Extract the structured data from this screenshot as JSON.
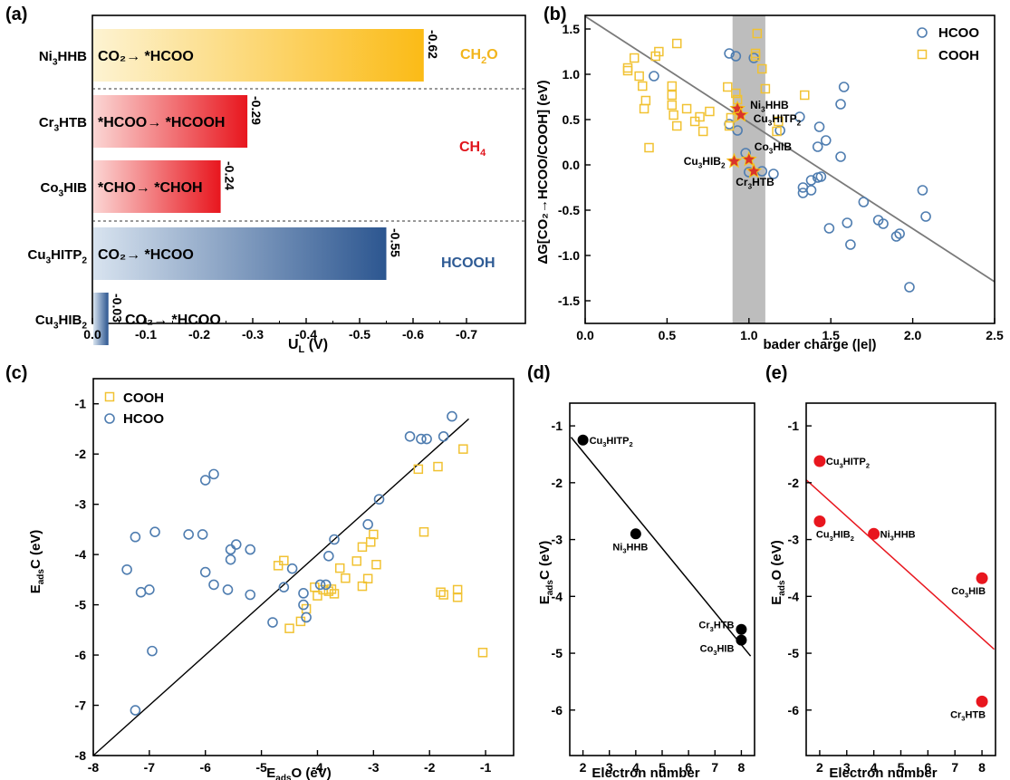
{
  "figure": {
    "panel_labels": [
      "(a)",
      "(b)",
      "(c)",
      "(d)",
      "(e)"
    ]
  },
  "chart_data": [
    {
      "panel": "(a)",
      "type": "bar",
      "orientation": "horizontal",
      "xlabel": "U",
      "xlabel_sub": "L",
      "xlabel_unit": " (V)",
      "xlim": [
        0.0,
        -0.8
      ],
      "xticks": [
        "0.0",
        "-0.1",
        "-0.2",
        "-0.3",
        "-0.4",
        "-0.5",
        "-0.6",
        "-0.7"
      ],
      "bars": [
        {
          "category_base": "Ni",
          "category_sub": "3",
          "category_rest": "HHB",
          "value": -0.62,
          "value_label": "-0.62",
          "step": "CO₂→ *HCOO",
          "color": "#fbbb16"
        },
        {
          "category_base": "Cr",
          "category_sub": "3",
          "category_rest": "HTB",
          "value": -0.29,
          "value_label": "-0.29",
          "step": "*HCOO→ *HCOOH",
          "color": "#e8161e"
        },
        {
          "category_base": "Co",
          "category_sub": "3",
          "category_rest": "HIB",
          "value": -0.24,
          "value_label": "-0.24",
          "step": "*CHO→ *CHOH",
          "color": "#e8161e"
        },
        {
          "category_base": "Cu",
          "category_sub": "3",
          "category_rest": "HITP",
          "category_sub2": "2",
          "value": -0.55,
          "value_label": "-0.55",
          "step": "CO₂→ *HCOO",
          "color": "#2c5690"
        },
        {
          "category_base": "Cu",
          "category_sub": "3",
          "category_rest": "HIB",
          "category_sub2": "2",
          "value": -0.03,
          "value_label": "-0.03",
          "step": "CO₂→ *HCOO",
          "color": "#2c5690"
        }
      ],
      "group_labels": [
        {
          "text": "CH",
          "sub": "2",
          "rest": "O",
          "color": "#f2b51d"
        },
        {
          "text": "CH",
          "sub": "4",
          "rest": "",
          "color": "#e0141c"
        },
        {
          "text": "HCOOH",
          "sub": "",
          "rest": "",
          "color": "#2d5a94"
        }
      ]
    },
    {
      "panel": "(b)",
      "type": "scatter",
      "xlabel": "bader charge (|e|)",
      "ylabel": "ΔG[CO₂→HCOO/COOH] (eV)",
      "xlim": [
        0.0,
        2.5
      ],
      "ylim": [
        -1.75,
        1.65
      ],
      "xticks": [
        "0.0",
        "0.5",
        "1.0",
        "1.5",
        "2.0",
        "2.5"
      ],
      "yticks": [
        "-1.5",
        "-1.0",
        "-0.5",
        "0.0",
        "0.5",
        "1.0",
        "1.5"
      ],
      "shaded_band": [
        0.9,
        1.1
      ],
      "fit_line": [
        [
          0.0,
          1.64
        ],
        [
          2.5,
          -1.29
        ]
      ],
      "legend": [
        "HCOO",
        "COOH"
      ],
      "series": [
        {
          "name": "HCOO",
          "marker": "circle",
          "color": "#4f7db0",
          "points": [
            [
              0.42,
              0.98
            ],
            [
              0.88,
              1.23
            ],
            [
              0.92,
              1.2
            ],
            [
              1.03,
              1.18
            ],
            [
              0.88,
              0.45
            ],
            [
              0.93,
              0.38
            ],
            [
              0.98,
              0.13
            ],
            [
              1.0,
              -0.08
            ],
            [
              1.08,
              -0.07
            ],
            [
              1.15,
              -0.1
            ],
            [
              1.19,
              0.38
            ],
            [
              1.31,
              0.53
            ],
            [
              1.33,
              -0.25
            ],
            [
              1.33,
              -0.31
            ],
            [
              1.38,
              -0.17
            ],
            [
              1.38,
              -0.28
            ],
            [
              1.42,
              -0.14
            ],
            [
              1.44,
              -0.13
            ],
            [
              1.42,
              0.2
            ],
            [
              1.43,
              0.42
            ],
            [
              1.47,
              0.27
            ],
            [
              1.49,
              -0.7
            ],
            [
              1.56,
              0.67
            ],
            [
              1.56,
              0.09
            ],
            [
              1.58,
              0.86
            ],
            [
              1.6,
              -0.64
            ],
            [
              1.62,
              -0.88
            ],
            [
              1.7,
              -0.41
            ],
            [
              1.79,
              -0.61
            ],
            [
              1.82,
              -0.65
            ],
            [
              1.9,
              -0.79
            ],
            [
              1.92,
              -0.76
            ],
            [
              1.98,
              -1.35
            ],
            [
              2.06,
              -0.28
            ],
            [
              2.08,
              -0.57
            ]
          ]
        },
        {
          "name": "COOH",
          "marker": "square",
          "color": "#f1c232",
          "points": [
            [
              0.26,
              1.04
            ],
            [
              0.26,
              1.07
            ],
            [
              0.3,
              1.18
            ],
            [
              0.33,
              0.98
            ],
            [
              0.35,
              0.87
            ],
            [
              0.36,
              0.62
            ],
            [
              0.37,
              0.71
            ],
            [
              0.39,
              0.19
            ],
            [
              0.43,
              1.2
            ],
            [
              0.45,
              1.25
            ],
            [
              0.53,
              0.87
            ],
            [
              0.53,
              0.77
            ],
            [
              0.53,
              0.66
            ],
            [
              0.54,
              0.55
            ],
            [
              0.56,
              1.34
            ],
            [
              0.56,
              0.43
            ],
            [
              0.62,
              0.62
            ],
            [
              0.67,
              0.48
            ],
            [
              0.7,
              0.53
            ],
            [
              0.72,
              0.37
            ],
            [
              0.76,
              0.59
            ],
            [
              0.87,
              0.86
            ],
            [
              0.88,
              0.43
            ],
            [
              0.89,
              0.52
            ],
            [
              0.92,
              0.79
            ],
            [
              0.93,
              0.72
            ],
            [
              1.04,
              1.23
            ],
            [
              1.04,
              1.2
            ],
            [
              1.05,
              1.45
            ],
            [
              1.08,
              1.06
            ],
            [
              1.1,
              0.84
            ],
            [
              1.17,
              0.37
            ],
            [
              1.18,
              0.48
            ],
            [
              1.34,
              0.77
            ]
          ]
        }
      ],
      "highlights": [
        {
          "base": "Ni",
          "sub": "3",
          "rest": "HHB",
          "sub2": "",
          "x": 0.93,
          "y": 0.62
        },
        {
          "base": "Cu",
          "sub": "3",
          "rest": "HITP",
          "sub2": "2",
          "x": 0.95,
          "y": 0.55
        },
        {
          "base": "Co",
          "sub": "3",
          "rest": "HIB",
          "sub2": "",
          "x": 1.0,
          "y": 0.06
        },
        {
          "base": "Cu",
          "sub": "3",
          "rest": "HIB",
          "sub2": "2",
          "x": 0.91,
          "y": 0.04
        },
        {
          "base": "Cr",
          "sub": "3",
          "rest": "HTB",
          "sub2": "",
          "x": 1.03,
          "y": -0.07
        }
      ]
    },
    {
      "panel": "(c)",
      "type": "scatter",
      "xlabel": "E",
      "xlabel_sub": "ads",
      "xlabel_rest": "O (eV)",
      "ylabel": "E",
      "ylabel_sub": "ads",
      "ylabel_rest": "C (eV)",
      "xlim": [
        -8,
        -0.5
      ],
      "ylim": [
        -8,
        -0.5
      ],
      "xticks": [
        "-8",
        "-7",
        "-6",
        "-5",
        "-4",
        "-3",
        "-2",
        "-1"
      ],
      "yticks": [
        "-1",
        "-2",
        "-3",
        "-4",
        "-5",
        "-6",
        "-7",
        "-8"
      ],
      "fit_line": [
        [
          -8,
          -8
        ],
        [
          -1.3,
          -1.3
        ]
      ],
      "legend": [
        "COOH",
        "HCOO"
      ],
      "series": [
        {
          "name": "COOH",
          "marker": "square",
          "color": "#f1c232",
          "points": [
            [
              -4.7,
              -4.22
            ],
            [
              -4.6,
              -4.12
            ],
            [
              -4.5,
              -5.47
            ],
            [
              -4.3,
              -5.33
            ],
            [
              -4.2,
              -5.08
            ],
            [
              -4.05,
              -4.65
            ],
            [
              -4.0,
              -4.82
            ],
            [
              -3.9,
              -4.7
            ],
            [
              -3.8,
              -4.73
            ],
            [
              -3.75,
              -4.69
            ],
            [
              -3.7,
              -4.78
            ],
            [
              -3.6,
              -4.27
            ],
            [
              -3.5,
              -4.47
            ],
            [
              -3.3,
              -4.13
            ],
            [
              -3.2,
              -4.63
            ],
            [
              -3.2,
              -3.85
            ],
            [
              -3.1,
              -4.48
            ],
            [
              -3.05,
              -3.75
            ],
            [
              -3.0,
              -3.6
            ],
            [
              -2.95,
              -4.2
            ],
            [
              -2.2,
              -2.3
            ],
            [
              -2.1,
              -3.55
            ],
            [
              -1.85,
              -2.25
            ],
            [
              -1.8,
              -4.75
            ],
            [
              -1.75,
              -4.8
            ],
            [
              -1.5,
              -4.7
            ],
            [
              -1.5,
              -4.85
            ],
            [
              -1.4,
              -1.9
            ],
            [
              -1.05,
              -5.95
            ]
          ]
        },
        {
          "name": "HCOO",
          "marker": "circle",
          "color": "#4f7db0",
          "points": [
            [
              -7.4,
              -4.3
            ],
            [
              -7.25,
              -3.65
            ],
            [
              -7.25,
              -7.1
            ],
            [
              -7.15,
              -4.75
            ],
            [
              -7.0,
              -4.7
            ],
            [
              -6.95,
              -5.92
            ],
            [
              -6.9,
              -3.55
            ],
            [
              -6.3,
              -3.6
            ],
            [
              -6.05,
              -3.6
            ],
            [
              -6.0,
              -2.52
            ],
            [
              -6.0,
              -4.35
            ],
            [
              -5.85,
              -2.4
            ],
            [
              -5.85,
              -4.6
            ],
            [
              -5.6,
              -4.7
            ],
            [
              -5.55,
              -3.9
            ],
            [
              -5.55,
              -4.1
            ],
            [
              -5.45,
              -3.8
            ],
            [
              -5.2,
              -3.9
            ],
            [
              -5.2,
              -4.8
            ],
            [
              -4.8,
              -5.35
            ],
            [
              -4.6,
              -4.65
            ],
            [
              -4.45,
              -4.28
            ],
            [
              -4.25,
              -4.77
            ],
            [
              -4.25,
              -5.0
            ],
            [
              -4.2,
              -5.25
            ],
            [
              -3.95,
              -4.6
            ],
            [
              -3.85,
              -4.6
            ],
            [
              -3.8,
              -4.03
            ],
            [
              -3.7,
              -3.7
            ],
            [
              -3.1,
              -3.4
            ],
            [
              -2.9,
              -2.9
            ],
            [
              -2.35,
              -1.65
            ],
            [
              -2.15,
              -1.7
            ],
            [
              -2.05,
              -1.7
            ],
            [
              -1.75,
              -1.65
            ],
            [
              -1.6,
              -1.25
            ]
          ]
        }
      ]
    },
    {
      "panel": "(d)",
      "type": "scatter",
      "xlabel": "Electron number",
      "ylabel": "E",
      "ylabel_sub": "ads",
      "ylabel_rest": "C (eV)",
      "xlim": [
        1.5,
        8.5
      ],
      "ylim": [
        -6.8,
        -0.6
      ],
      "xticks": [
        "2",
        "3",
        "4",
        "5",
        "6",
        "7",
        "8"
      ],
      "yticks": [
        "-1",
        "-2",
        "-3",
        "-4",
        "-5",
        "-6"
      ],
      "fit_line": [
        [
          1.55,
          -1.2
        ],
        [
          8.35,
          -5.05
        ]
      ],
      "series": [
        {
          "name": "",
          "marker": "dot",
          "color": "#000000",
          "points": [
            [
              2,
              -1.25
            ],
            [
              4,
              -2.9
            ],
            [
              8,
              -4.58
            ],
            [
              8,
              -4.77
            ]
          ],
          "labels": [
            {
              "base": "Cu",
              "sub": "3",
              "rest": "HITP",
              "sub2": "2"
            },
            {
              "base": "Ni",
              "sub": "3",
              "rest": "HHB",
              "sub2": ""
            },
            {
              "base": "Cr",
              "sub": "3",
              "rest": "HTB",
              "sub2": ""
            },
            {
              "base": "Co",
              "sub": "3",
              "rest": "HIB",
              "sub2": ""
            }
          ]
        }
      ]
    },
    {
      "panel": "(e)",
      "type": "scatter",
      "xlabel": "Electron number",
      "ylabel": "E",
      "ylabel_sub": "ads",
      "ylabel_rest": "O (eV)",
      "xlim": [
        1.5,
        8.5
      ],
      "ylim": [
        -6.8,
        -0.6
      ],
      "xticks": [
        "2",
        "3",
        "4",
        "5",
        "6",
        "7",
        "8"
      ],
      "yticks": [
        "-1",
        "-2",
        "-3",
        "-4",
        "-5",
        "-6"
      ],
      "fit_line": [
        [
          1.5,
          -1.95
        ],
        [
          8.45,
          -4.93
        ]
      ],
      "series": [
        {
          "name": "",
          "marker": "dot",
          "color": "#e8161e",
          "points": [
            [
              2,
              -1.62
            ],
            [
              2,
              -2.68
            ],
            [
              4,
              -2.9
            ],
            [
              8,
              -3.68
            ],
            [
              8,
              -5.85
            ]
          ],
          "labels": [
            {
              "base": "Cu",
              "sub": "3",
              "rest": "HITP",
              "sub2": "2"
            },
            {
              "base": "Cu",
              "sub": "3",
              "rest": "HIB",
              "sub2": "2"
            },
            {
              "base": "Ni",
              "sub": "3",
              "rest": "HHB",
              "sub2": ""
            },
            {
              "base": "Co",
              "sub": "3",
              "rest": "HIB",
              "sub2": ""
            },
            {
              "base": "Cr",
              "sub": "3",
              "rest": "HTB",
              "sub2": ""
            }
          ]
        }
      ]
    }
  ]
}
